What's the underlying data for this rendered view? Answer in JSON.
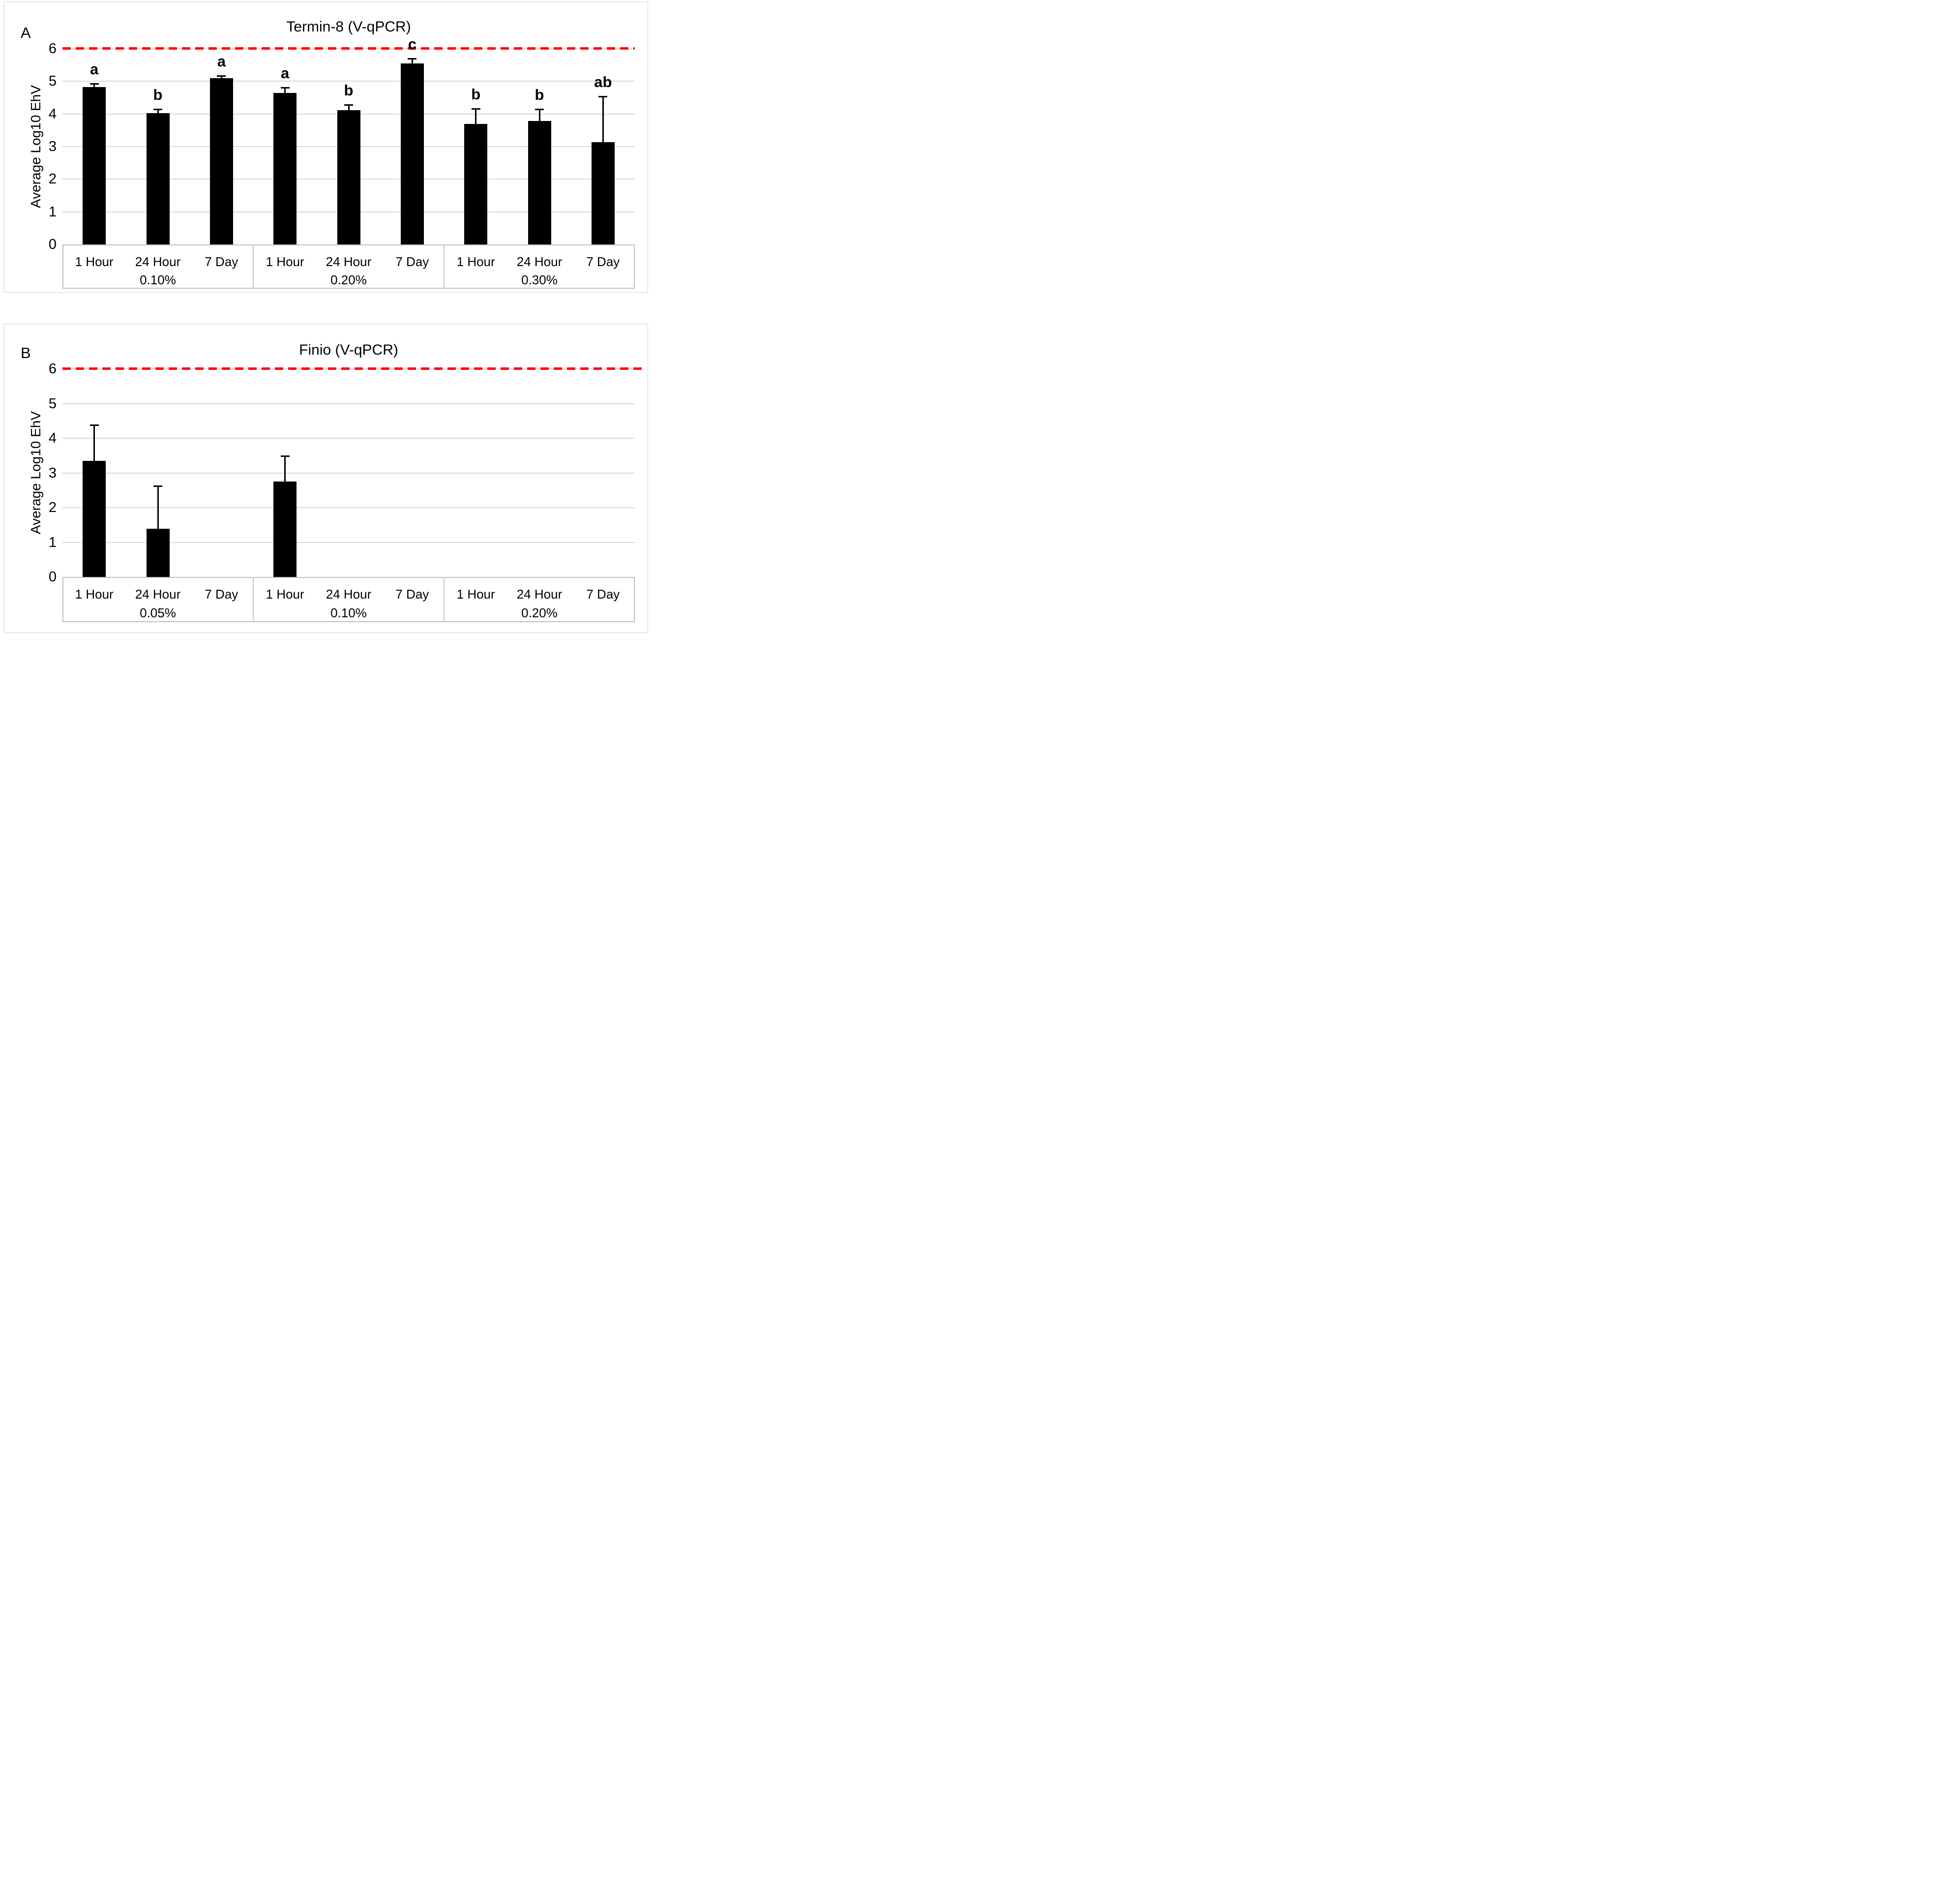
{
  "chart_data": [
    {
      "type": "bar",
      "panel_label": "A",
      "title": "Termin-8 (V-qPCR)",
      "ylabel": "Average Log10 EhV",
      "ylim": [
        0,
        6
      ],
      "yticks": [
        0,
        1,
        2,
        3,
        4,
        5,
        6
      ],
      "grid": "horizontal",
      "legend": "none",
      "bar_color": "#000000",
      "gridline_color": "#d9d9d9",
      "threshold_line": {
        "y": 6,
        "color": "#ff0000",
        "style": "dashed"
      },
      "categories_per_group": [
        "1 Hour",
        "24 Hour",
        "7 Day"
      ],
      "groups": [
        {
          "label": "0.10%",
          "categories": [
            "1 Hour",
            "24 Hour",
            "7 Day"
          ],
          "values": [
            4.82,
            4.03,
            5.09
          ],
          "error_top": [
            4.93,
            4.14,
            5.17
          ],
          "sig_letters": [
            "a",
            "b",
            "a"
          ]
        },
        {
          "label": "0.20%",
          "categories": [
            "1 Hour",
            "24 Hour",
            "7 Day"
          ],
          "values": [
            4.64,
            4.12,
            5.54
          ],
          "error_top": [
            4.81,
            4.28,
            5.69
          ],
          "sig_letters": [
            "a",
            "b",
            "c"
          ]
        },
        {
          "label": "0.30%",
          "categories": [
            "1 Hour",
            "24 Hour",
            "7 Day"
          ],
          "values": [
            3.69,
            3.79,
            3.13
          ],
          "error_top": [
            4.16,
            4.15,
            4.54
          ],
          "sig_letters": [
            "b",
            "b",
            "ab"
          ]
        }
      ]
    },
    {
      "type": "bar",
      "panel_label": "B",
      "title": "Finio (V-qPCR)",
      "ylabel": "Average Log10 EhV",
      "ylim": [
        0,
        6
      ],
      "yticks": [
        0,
        1,
        2,
        3,
        4,
        5,
        6
      ],
      "grid": "horizontal",
      "legend": "none",
      "bar_color": "#000000",
      "gridline_color": "#d9d9d9",
      "threshold_line": {
        "y": 6,
        "color": "#ff0000",
        "style": "dashed"
      },
      "categories_per_group": [
        "1 Hour",
        "24 Hour",
        "7 Day"
      ],
      "groups": [
        {
          "label": "0.05%",
          "categories": [
            "1 Hour",
            "24 Hour",
            "7 Day"
          ],
          "values": [
            3.35,
            1.39,
            0
          ],
          "error_top": [
            4.39,
            2.62,
            null
          ],
          "sig_letters": [
            "",
            "",
            ""
          ]
        },
        {
          "label": "0.10%",
          "categories": [
            "1 Hour",
            "24 Hour",
            "7 Day"
          ],
          "values": [
            2.75,
            0,
            0
          ],
          "error_top": [
            3.49,
            null,
            null
          ],
          "sig_letters": [
            "",
            "",
            ""
          ]
        },
        {
          "label": "0.20%",
          "categories": [
            "1 Hour",
            "24 Hour",
            "7 Day"
          ],
          "values": [
            0,
            0,
            0
          ],
          "error_top": [
            null,
            null,
            null
          ],
          "sig_letters": [
            "",
            "",
            ""
          ]
        }
      ]
    }
  ]
}
